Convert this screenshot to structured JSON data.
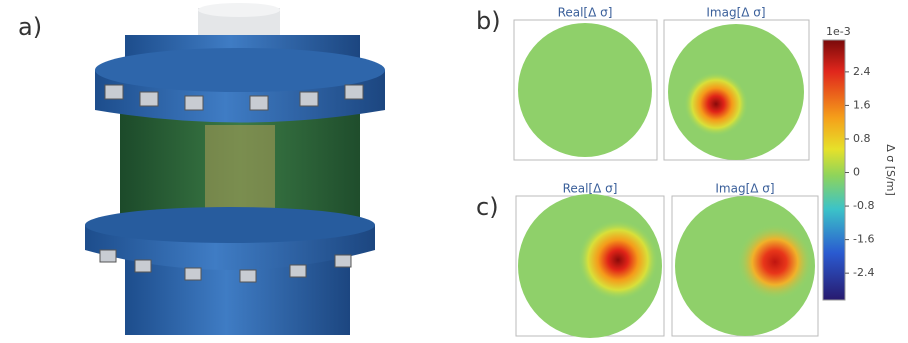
{
  "panel_labels": [
    "a)",
    "b)",
    "c)"
  ],
  "plots": {
    "b": [
      "Real[Δ σ]",
      "Imag[Δ σ]"
    ],
    "c": [
      "Real[Δ σ]",
      "Imag[Δ σ]"
    ]
  },
  "colorbar": {
    "label": "Δ σ [S/m]",
    "scale": "1e-3",
    "lim": [
      -3.04,
      3.16
    ],
    "ticks": [
      2.4,
      1.6,
      0.8,
      0,
      -0.8,
      -1.6,
      -2.4
    ]
  }
}
